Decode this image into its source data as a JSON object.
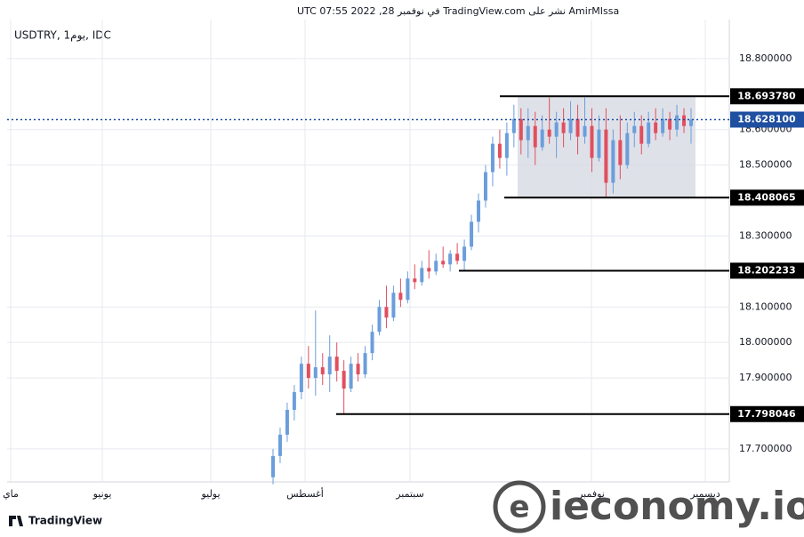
{
  "header": "AmirMIssa نشر على TradingView.com في نوفمبر 28, 2022 07:55 UTC",
  "footer": "TradingView",
  "watermark": "ieconomy.io",
  "chart_data": {
    "type": "candlestick",
    "symbol": "USDTRY, 1يوم, IDC",
    "x_labels": [
      "ماي",
      "يونيو",
      "يوليو",
      "أغسطس",
      "سبتمبر",
      "نوفمبر",
      "ديسمبر"
    ],
    "ylim": [
      17.607,
      18.91
    ],
    "yticks": [
      {
        "value": 18.8,
        "label": "18.800000"
      },
      {
        "value": 18.6,
        "label": "18.600000"
      },
      {
        "value": 18.5,
        "label": "18.500000"
      },
      {
        "value": 18.3,
        "label": "18.300000"
      },
      {
        "value": 18.1,
        "label": "18.100000"
      },
      {
        "value": 18.0,
        "label": "18.000000"
      },
      {
        "value": 17.9,
        "label": "17.900000"
      },
      {
        "value": 17.7,
        "label": "17.700000"
      }
    ],
    "grid": true,
    "up_color": "#6b9edb",
    "down_color": "#e04f5f",
    "open": [
      17.62,
      17.68,
      17.74,
      17.81,
      17.86,
      17.94,
      17.9,
      17.93,
      17.91,
      17.96,
      17.92,
      17.87,
      17.94,
      17.91,
      17.97,
      18.03,
      18.1,
      18.07,
      18.14,
      18.12,
      18.18,
      18.17,
      18.21,
      18.2,
      18.23,
      18.22,
      18.25,
      18.23,
      18.27,
      18.34,
      18.4,
      18.48,
      18.56,
      18.52,
      18.59,
      18.63,
      18.57,
      18.61,
      18.55,
      18.6,
      18.58,
      18.62,
      18.59,
      18.63,
      18.58,
      18.61,
      18.52,
      18.6,
      18.45,
      18.57,
      18.5,
      18.59,
      18.61,
      18.56,
      18.62,
      18.59,
      18.63,
      18.6,
      18.64,
      18.61
    ],
    "high": [
      17.7,
      17.76,
      17.83,
      17.88,
      17.96,
      17.99,
      18.09,
      17.97,
      18.02,
      18.0,
      17.95,
      17.96,
      17.97,
      17.99,
      18.05,
      18.12,
      18.16,
      18.16,
      18.18,
      18.2,
      18.22,
      18.23,
      18.26,
      18.25,
      18.27,
      18.26,
      18.28,
      18.29,
      18.36,
      18.42,
      18.5,
      18.58,
      18.6,
      18.62,
      18.67,
      18.66,
      18.66,
      18.65,
      18.64,
      18.69,
      18.65,
      18.66,
      18.68,
      18.67,
      18.69,
      18.66,
      18.64,
      18.66,
      18.6,
      18.64,
      18.62,
      18.65,
      18.64,
      18.65,
      18.66,
      18.66,
      18.65,
      18.67,
      18.66,
      18.66
    ],
    "low": [
      17.6,
      17.66,
      17.72,
      17.78,
      17.84,
      17.87,
      17.85,
      17.88,
      17.86,
      17.89,
      17.8,
      17.86,
      17.89,
      17.9,
      17.95,
      18.02,
      18.04,
      18.06,
      18.1,
      18.11,
      18.15,
      18.16,
      18.18,
      18.19,
      18.21,
      18.2,
      18.22,
      18.2,
      18.26,
      18.31,
      18.38,
      18.44,
      18.49,
      18.47,
      18.55,
      18.53,
      18.52,
      18.5,
      18.54,
      18.56,
      18.52,
      18.55,
      18.57,
      18.53,
      18.56,
      18.48,
      18.51,
      18.41,
      18.42,
      18.46,
      18.49,
      18.55,
      18.53,
      18.55,
      18.57,
      18.58,
      18.57,
      18.58,
      18.59,
      18.56
    ],
    "close": [
      17.68,
      17.74,
      17.81,
      17.86,
      17.94,
      17.9,
      17.93,
      17.91,
      17.96,
      17.92,
      17.87,
      17.94,
      17.91,
      17.97,
      18.03,
      18.1,
      18.07,
      18.14,
      18.12,
      18.18,
      18.17,
      18.21,
      18.2,
      18.23,
      18.22,
      18.25,
      18.23,
      18.27,
      18.34,
      18.4,
      18.48,
      18.56,
      18.52,
      18.59,
      18.63,
      18.57,
      18.61,
      18.55,
      18.6,
      18.58,
      18.62,
      18.59,
      18.63,
      18.58,
      18.61,
      18.52,
      18.6,
      18.45,
      18.57,
      18.5,
      18.59,
      18.61,
      18.56,
      18.62,
      18.59,
      18.63,
      18.6,
      18.64,
      18.61,
      18.628
    ],
    "levels": [
      {
        "value": 18.69378,
        "label": "18.693780"
      },
      {
        "value": 18.6281,
        "label": "18.628100"
      },
      {
        "value": 18.408065,
        "label": "18.408065"
      },
      {
        "value": 18.202233,
        "label": "18.202233"
      },
      {
        "value": 17.798046,
        "label": "17.798046"
      }
    ],
    "current_color": "#1e4fa0"
  }
}
